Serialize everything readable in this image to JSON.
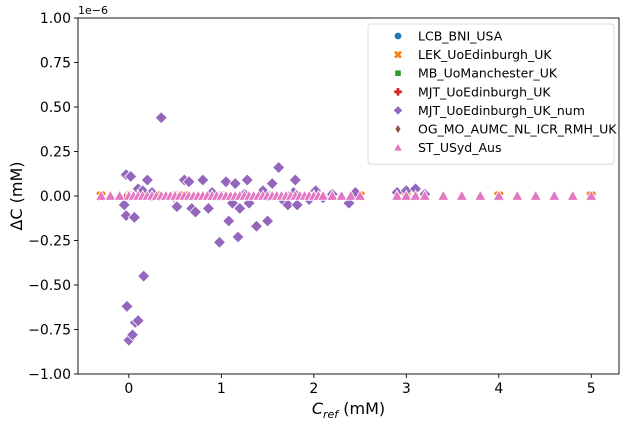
{
  "chart_data": {
    "type": "scatter",
    "xlabel_main": "C",
    "xlabel_sub": "ref",
    "xlabel_unit": " (mM)",
    "ylabel": "ΔC (mM)",
    "y_offset_label": "1e−6",
    "xlim": [
      -0.55,
      5.3
    ],
    "ylim": [
      -1.0,
      1.0
    ],
    "xticks": [
      0,
      1,
      2,
      3,
      4,
      5
    ],
    "xtick_labels": [
      "0",
      "1",
      "2",
      "3",
      "4",
      "5"
    ],
    "yticks": [
      1.0,
      0.75,
      0.5,
      0.25,
      0.0,
      -0.25,
      -0.5,
      -0.75,
      -1.0
    ],
    "ytick_labels": [
      "1.00",
      "0.75",
      "0.50",
      "0.25",
      "0.00",
      "−0.25",
      "−0.50",
      "−0.75",
      "−1.00"
    ],
    "grid": false,
    "legend_position": "top-right",
    "series": [
      {
        "name": "LCB_BNI_USA",
        "color": "#1f77b4",
        "marker": "circle",
        "points": [
          [
            0.0,
            0
          ],
          [
            0.2,
            0
          ],
          [
            0.5,
            0
          ],
          [
            1.0,
            0
          ],
          [
            2.0,
            0
          ],
          [
            3.0,
            0
          ],
          [
            5.0,
            0
          ]
        ]
      },
      {
        "name": "LEK_UoEdinburgh_UK",
        "color": "#ff7f0e",
        "marker": "x",
        "points": [
          [
            -0.3,
            0
          ],
          [
            0.0,
            0
          ],
          [
            0.3,
            0
          ],
          [
            0.6,
            0
          ],
          [
            1.0,
            0
          ],
          [
            1.5,
            0
          ],
          [
            2.0,
            0
          ],
          [
            2.5,
            0
          ],
          [
            3.0,
            0
          ],
          [
            4.0,
            0
          ],
          [
            5.0,
            0
          ]
        ]
      },
      {
        "name": "MB_UoManchester_UK",
        "color": "#2ca02c",
        "marker": "square",
        "points": [
          [
            0.0,
            0
          ],
          [
            0.5,
            0
          ],
          [
            1.0,
            0
          ],
          [
            1.5,
            0
          ],
          [
            2.0,
            0
          ]
        ]
      },
      {
        "name": "MJT_UoEdinburgh_UK",
        "color": "#d62728",
        "marker": "plus",
        "points": [
          [
            0.0,
            0
          ],
          [
            0.25,
            0
          ],
          [
            0.5,
            0
          ],
          [
            1.0,
            0
          ],
          [
            1.5,
            0
          ],
          [
            2.0,
            0
          ]
        ]
      },
      {
        "name": "MJT_UoEdinburgh_UK_num",
        "color": "#9467bd",
        "marker": "diamond",
        "points": [
          [
            0.35,
            0.44
          ],
          [
            -0.03,
            0.12
          ],
          [
            0.02,
            0.11
          ],
          [
            0.1,
            0.04
          ],
          [
            0.15,
            0.03
          ],
          [
            0.2,
            0.09
          ],
          [
            0.25,
            0.02
          ],
          [
            -0.05,
            -0.05
          ],
          [
            -0.03,
            -0.11
          ],
          [
            0.06,
            -0.12
          ],
          [
            0.16,
            -0.45
          ],
          [
            -0.02,
            -0.62
          ],
          [
            0.0,
            -0.81
          ],
          [
            0.04,
            -0.78
          ],
          [
            0.07,
            -0.71
          ],
          [
            0.1,
            -0.7
          ],
          [
            0.5,
            -0.01
          ],
          [
            0.52,
            -0.06
          ],
          [
            0.6,
            0.09
          ],
          [
            0.65,
            0.08
          ],
          [
            0.68,
            -0.07
          ],
          [
            0.72,
            -0.09
          ],
          [
            0.8,
            0.09
          ],
          [
            0.86,
            -0.07
          ],
          [
            0.9,
            0.02
          ],
          [
            0.98,
            -0.26
          ],
          [
            1.05,
            0.08
          ],
          [
            1.08,
            -0.14
          ],
          [
            1.12,
            -0.04
          ],
          [
            1.15,
            0.07
          ],
          [
            1.18,
            -0.23
          ],
          [
            1.2,
            -0.07
          ],
          [
            1.25,
            0.01
          ],
          [
            1.28,
            0.09
          ],
          [
            1.3,
            -0.04
          ],
          [
            1.38,
            -0.17
          ],
          [
            1.45,
            0.03
          ],
          [
            1.5,
            -0.14
          ],
          [
            1.55,
            0.07
          ],
          [
            1.62,
            0.16
          ],
          [
            1.68,
            -0.03
          ],
          [
            1.72,
            -0.05
          ],
          [
            1.78,
            0.02
          ],
          [
            1.8,
            0.09
          ],
          [
            1.82,
            -0.05
          ],
          [
            1.95,
            -0.02
          ],
          [
            2.02,
            0.03
          ],
          [
            2.1,
            -0.01
          ],
          [
            2.2,
            0.01
          ],
          [
            2.38,
            -0.04
          ],
          [
            2.45,
            0.02
          ],
          [
            2.9,
            0.02
          ],
          [
            3.0,
            0.03
          ],
          [
            3.1,
            0.04
          ],
          [
            3.2,
            0.01
          ]
        ]
      },
      {
        "name": "OG_MO_AUMC_NL_ICR_RMH_UK",
        "color": "#8c564b",
        "marker": "diamond-thin",
        "points": [
          [
            0.0,
            0
          ],
          [
            0.5,
            0
          ],
          [
            1.0,
            0
          ],
          [
            2.0,
            0
          ]
        ]
      },
      {
        "name": "ST_USyd_Aus",
        "color": "#e377c2",
        "marker": "triangle",
        "points": [
          [
            -0.3,
            0
          ],
          [
            -0.2,
            0
          ],
          [
            -0.1,
            0
          ],
          [
            0.0,
            0
          ],
          [
            0.05,
            0
          ],
          [
            0.1,
            0
          ],
          [
            0.15,
            0
          ],
          [
            0.2,
            0
          ],
          [
            0.25,
            0
          ],
          [
            0.3,
            0
          ],
          [
            0.35,
            0
          ],
          [
            0.4,
            0
          ],
          [
            0.45,
            0
          ],
          [
            0.5,
            0
          ],
          [
            0.55,
            0
          ],
          [
            0.6,
            0
          ],
          [
            0.65,
            0
          ],
          [
            0.7,
            0
          ],
          [
            0.75,
            0
          ],
          [
            0.8,
            0
          ],
          [
            0.85,
            0
          ],
          [
            0.9,
            0
          ],
          [
            0.95,
            0
          ],
          [
            1.0,
            0
          ],
          [
            1.05,
            0
          ],
          [
            1.1,
            0
          ],
          [
            1.15,
            0
          ],
          [
            1.2,
            0
          ],
          [
            1.25,
            0
          ],
          [
            1.3,
            0
          ],
          [
            1.35,
            0
          ],
          [
            1.4,
            0
          ],
          [
            1.45,
            0
          ],
          [
            1.5,
            0
          ],
          [
            1.55,
            0
          ],
          [
            1.6,
            0
          ],
          [
            1.65,
            0
          ],
          [
            1.7,
            0
          ],
          [
            1.75,
            0
          ],
          [
            1.8,
            0
          ],
          [
            1.85,
            0
          ],
          [
            1.9,
            0
          ],
          [
            1.95,
            0
          ],
          [
            2.0,
            0
          ],
          [
            2.05,
            0
          ],
          [
            2.1,
            0
          ],
          [
            2.2,
            0
          ],
          [
            2.3,
            0
          ],
          [
            2.4,
            0
          ],
          [
            2.5,
            0
          ],
          [
            2.9,
            0
          ],
          [
            3.0,
            0
          ],
          [
            3.1,
            0
          ],
          [
            3.2,
            0
          ],
          [
            3.4,
            0
          ],
          [
            3.6,
            0
          ],
          [
            3.8,
            0
          ],
          [
            4.0,
            0
          ],
          [
            4.2,
            0
          ],
          [
            4.4,
            0
          ],
          [
            4.6,
            0
          ],
          [
            4.8,
            0
          ],
          [
            5.0,
            0
          ]
        ]
      }
    ]
  }
}
